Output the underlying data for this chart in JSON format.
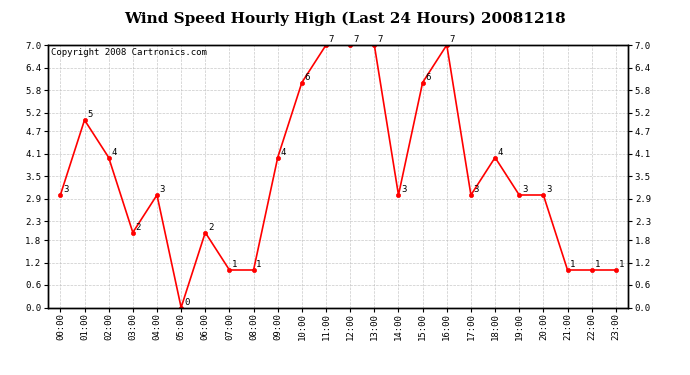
{
  "title": "Wind Speed Hourly High (Last 24 Hours) 20081218",
  "copyright": "Copyright 2008 Cartronics.com",
  "hours": [
    "00:00",
    "01:00",
    "02:00",
    "03:00",
    "04:00",
    "05:00",
    "06:00",
    "07:00",
    "08:00",
    "09:00",
    "10:00",
    "11:00",
    "12:00",
    "13:00",
    "14:00",
    "15:00",
    "16:00",
    "17:00",
    "18:00",
    "19:00",
    "20:00",
    "21:00",
    "22:00",
    "23:00"
  ],
  "values": [
    3,
    5,
    4,
    2,
    3,
    0,
    2,
    1,
    1,
    4,
    6,
    7,
    7,
    7,
    3,
    6,
    7,
    3,
    4,
    3,
    3,
    1,
    1,
    1
  ],
  "line_color": "#ff0000",
  "marker_color": "#ff0000",
  "bg_color": "#ffffff",
  "plot_bg_color": "#ffffff",
  "grid_color": "#bbbbbb",
  "ylim": [
    0.0,
    7.0
  ],
  "yticks": [
    0.0,
    0.6,
    1.2,
    1.8,
    2.3,
    2.9,
    3.5,
    4.1,
    4.7,
    5.2,
    5.8,
    6.4,
    7.0
  ],
  "title_fontsize": 11,
  "copyright_fontsize": 6.5,
  "label_fontsize": 6.5,
  "annot_fontsize": 6.5
}
